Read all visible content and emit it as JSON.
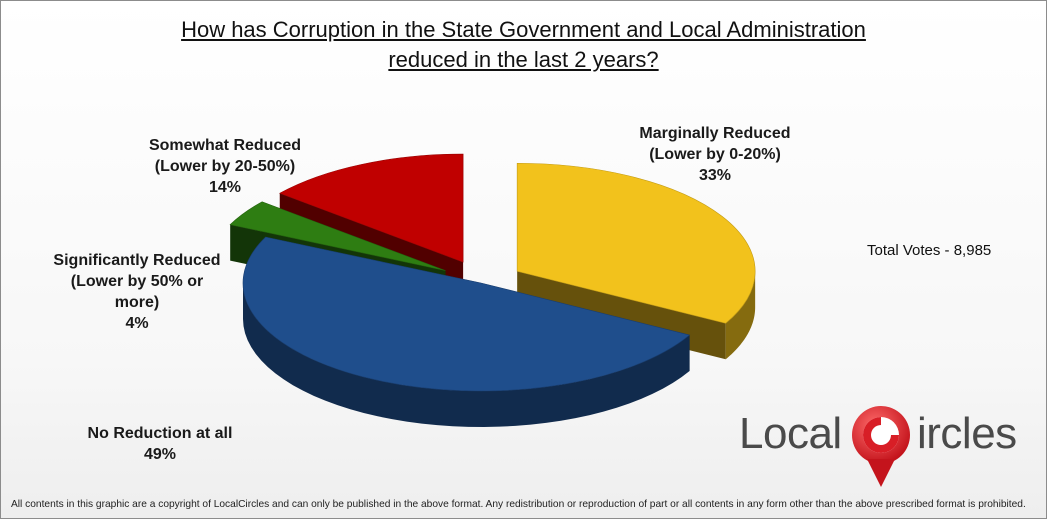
{
  "chart_data": {
    "type": "pie",
    "title_line1": "How has Corruption in the State Government and Local Administration",
    "title_line2": "reduced in the last 2 years?",
    "slices": [
      {
        "name_lines": [
          "Marginally Reduced",
          "(Lower by 0-20%)"
        ],
        "value": 33,
        "value_label": "33%",
        "color": "#F2C21C"
      },
      {
        "name_lines": [
          "No Reduction at all"
        ],
        "value": 49,
        "value_label": "49%",
        "color": "#1F4E8C"
      },
      {
        "name_lines": [
          "Significantly Reduced",
          "(Lower by 50% or",
          "more)"
        ],
        "value": 4,
        "value_label": "4%",
        "color": "#2E7D12"
      },
      {
        "name_lines": [
          "Somewhat Reduced",
          "(Lower by 20-50%)"
        ],
        "value": 14,
        "value_label": "14%",
        "color": "#C00000"
      }
    ],
    "annotation": "Total Votes - 8,985"
  },
  "logo": {
    "part1": "Local",
    "part2": "ircles"
  },
  "footer": "All contents in this graphic are a copyright of LocalCircles and can only be published in the above format. Any redistribution or reproduction of part or all contents in any form other than the above prescribed format is prohibited."
}
